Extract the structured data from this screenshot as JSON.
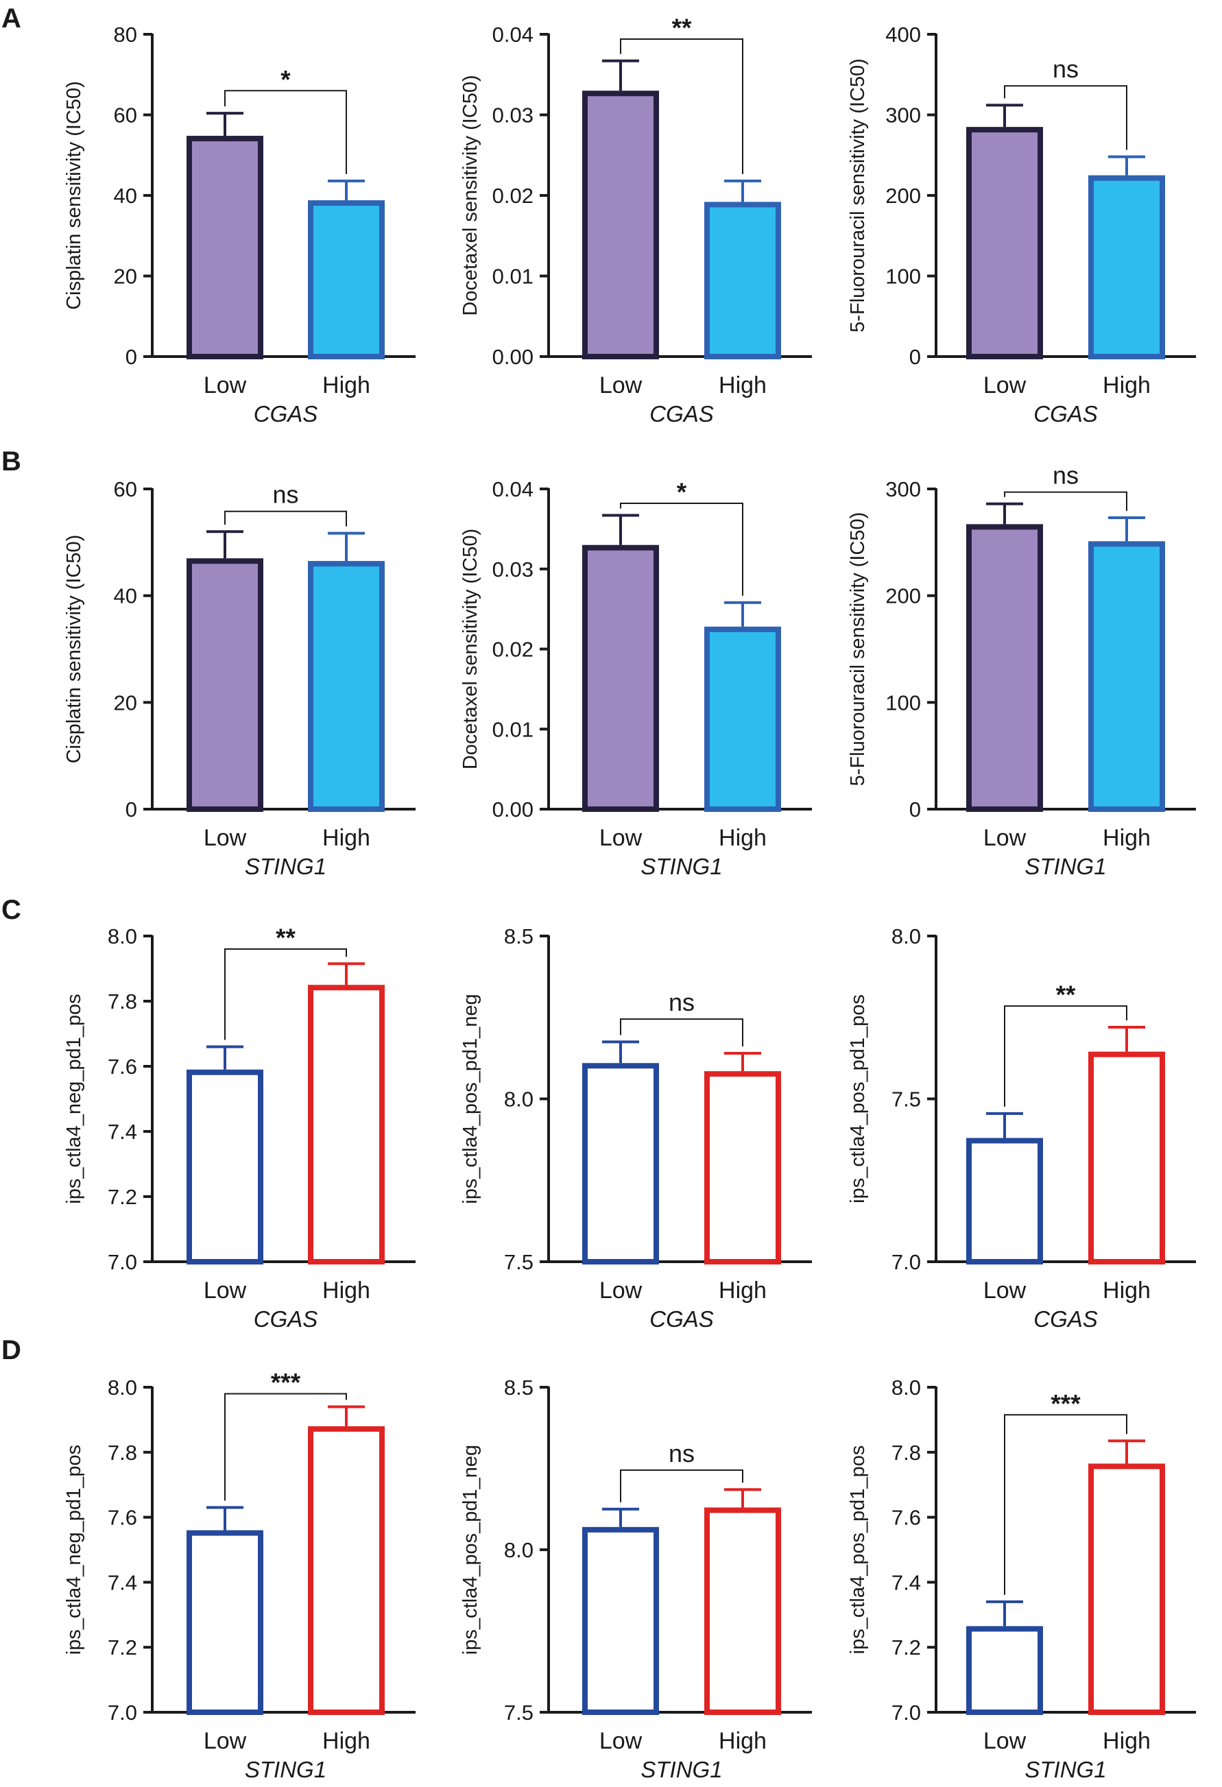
{
  "colors": {
    "low_fill": "#9e88c0",
    "low_stroke": "#26203f",
    "high_fill": "#2ebcee",
    "high_stroke": "#2e62b3",
    "open_low": "#24489c",
    "open_high": "#e02424",
    "axis": "#1a1a1a"
  },
  "chart_data": [
    {
      "panel": "A",
      "type": "bar",
      "style": "filled",
      "gene": "CGAS",
      "title": "",
      "xlabel": "CGAS",
      "ylabel": "Cisplatin sensitivity (IC50)",
      "categories": [
        "Low",
        "High"
      ],
      "values": [
        54.8,
        38.8
      ],
      "errors": [
        5.6,
        4.8
      ],
      "ylim": [
        0,
        80
      ],
      "yticks": [
        "0",
        "20",
        "40",
        "60",
        "80"
      ],
      "tick_values": [
        0,
        20,
        40,
        60,
        80
      ],
      "significance": "*",
      "bracket_low": 66,
      "bracket_high": 66
    },
    {
      "panel": "A",
      "type": "bar",
      "style": "filled",
      "gene": "CGAS",
      "title": "",
      "xlabel": "CGAS",
      "ylabel": "Docetaxel sensitivity (IC50)",
      "categories": [
        "Low",
        "High"
      ],
      "values": [
        0.033,
        0.0192
      ],
      "errors": [
        0.0037,
        0.0026
      ],
      "ylim": [
        0,
        0.04
      ],
      "yticks": [
        "0.00",
        "0.01",
        "0.02",
        "0.03",
        "0.04"
      ],
      "tick_values": [
        0,
        0.01,
        0.02,
        0.03,
        0.04
      ],
      "significance": "**",
      "bracket_low": 0.0394,
      "bracket_high": 0.0394
    },
    {
      "panel": "A",
      "type": "bar",
      "style": "filled",
      "gene": "CGAS",
      "title": "",
      "xlabel": "CGAS",
      "ylabel": "5-Fluorouracil sensitivity (IC50)",
      "categories": [
        "Low",
        "High"
      ],
      "values": [
        285,
        225
      ],
      "errors": [
        27,
        23
      ],
      "ylim": [
        0,
        400
      ],
      "yticks": [
        "0",
        "100",
        "200",
        "300",
        "400"
      ],
      "tick_values": [
        0,
        100,
        200,
        300,
        400
      ],
      "significance": "ns",
      "bracket_low": 336,
      "bracket_high": 336
    },
    {
      "panel": "B",
      "type": "bar",
      "style": "filled",
      "gene": "STING1",
      "title": "",
      "xlabel": "STING1",
      "ylabel": "Cisplatin sensitivity (IC50)",
      "categories": [
        "Low",
        "High"
      ],
      "values": [
        47,
        46.5
      ],
      "errors": [
        5,
        5.2
      ],
      "ylim": [
        0,
        60
      ],
      "yticks": [
        "0",
        "20",
        "40",
        "60"
      ],
      "tick_values": [
        0,
        20,
        40,
        60
      ],
      "significance": "ns",
      "bracket_low": 55.8,
      "bracket_high": 55.8
    },
    {
      "panel": "B",
      "type": "bar",
      "style": "filled",
      "gene": "STING1",
      "title": "",
      "xlabel": "STING1",
      "ylabel": "Docetaxel sensitivity (IC50)",
      "categories": [
        "Low",
        "High"
      ],
      "values": [
        0.033,
        0.0228
      ],
      "errors": [
        0.0037,
        0.003
      ],
      "ylim": [
        0,
        0.04
      ],
      "yticks": [
        "0.00",
        "0.01",
        "0.02",
        "0.03",
        "0.04"
      ],
      "tick_values": [
        0,
        0.01,
        0.02,
        0.03,
        0.04
      ],
      "significance": "*",
      "bracket_low": 0.0382,
      "bracket_high": 0.0382
    },
    {
      "panel": "B",
      "type": "bar",
      "style": "filled",
      "gene": "STING1",
      "title": "",
      "xlabel": "STING1",
      "ylabel": "5-Fluorouracil sensitivity (IC50)",
      "categories": [
        "Low",
        "High"
      ],
      "values": [
        267,
        251
      ],
      "errors": [
        19,
        22
      ],
      "ylim": [
        0,
        300
      ],
      "yticks": [
        "0",
        "100",
        "200",
        "300"
      ],
      "tick_values": [
        0,
        100,
        200,
        300
      ],
      "significance": "ns",
      "bracket_low": 297,
      "bracket_high": 297
    },
    {
      "panel": "C",
      "type": "bar",
      "style": "open",
      "gene": "CGAS",
      "title": "",
      "xlabel": "CGAS",
      "ylabel": "ips_ctla4_neg_pd1_pos",
      "categories": [
        "Low",
        "High"
      ],
      "values": [
        7.59,
        7.85
      ],
      "errors": [
        0.07,
        0.065
      ],
      "ylim": [
        7.0,
        8.0
      ],
      "yticks": [
        "7.0",
        "7.2",
        "7.4",
        "7.6",
        "7.8",
        "8.0"
      ],
      "tick_values": [
        7.0,
        7.2,
        7.4,
        7.6,
        7.8,
        8.0
      ],
      "significance": "**",
      "bracket_low": 7.77,
      "bracket_high": 7.96
    },
    {
      "panel": "C",
      "type": "bar",
      "style": "open",
      "gene": "CGAS",
      "title": "",
      "xlabel": "CGAS",
      "ylabel": "ips_ctla4_pos_pd1_neg",
      "categories": [
        "Low",
        "High"
      ],
      "values": [
        8.11,
        8.085
      ],
      "errors": [
        0.065,
        0.055
      ],
      "ylim": [
        7.5,
        8.5
      ],
      "yticks": [
        "7.5",
        "8.0",
        "8.5"
      ],
      "tick_values": [
        7.5,
        8.0,
        8.5
      ],
      "significance": "ns",
      "bracket_low": 8.245,
      "bracket_high": 8.195
    },
    {
      "panel": "C",
      "type": "bar",
      "style": "open",
      "gene": "CGAS",
      "title": "",
      "xlabel": "CGAS",
      "ylabel": "ips_ctla4_pos_pd1_pos",
      "categories": [
        "Low",
        "High"
      ],
      "values": [
        7.38,
        7.645
      ],
      "errors": [
        0.075,
        0.075
      ],
      "ylim": [
        7.0,
        8.0
      ],
      "yticks": [
        "7.0",
        "7.5",
        "8.0"
      ],
      "tick_values": [
        7.0,
        7.5,
        8.0
      ],
      "significance": "**",
      "bracket_low": 7.535,
      "bracket_high": 7.785
    },
    {
      "panel": "D",
      "type": "bar",
      "style": "open",
      "gene": "STING1",
      "title": "",
      "xlabel": "STING1",
      "ylabel": "ips_ctla4_neg_pd1_pos",
      "categories": [
        "Low",
        "High"
      ],
      "values": [
        7.56,
        7.88
      ],
      "errors": [
        0.07,
        0.06
      ],
      "ylim": [
        7.0,
        8.0
      ],
      "yticks": [
        "7.0",
        "7.2",
        "7.4",
        "7.6",
        "7.8",
        "8.0"
      ],
      "tick_values": [
        7.0,
        7.2,
        7.4,
        7.6,
        7.8,
        8.0
      ],
      "significance": "***",
      "bracket_low": 7.7,
      "bracket_high": 7.98
    },
    {
      "panel": "D",
      "type": "bar",
      "style": "open",
      "gene": "STING1",
      "title": "",
      "xlabel": "STING1",
      "ylabel": "ips_ctla4_pos_pd1_neg",
      "categories": [
        "Low",
        "High"
      ],
      "values": [
        8.07,
        8.13
      ],
      "errors": [
        0.055,
        0.055
      ],
      "ylim": [
        7.5,
        8.5
      ],
      "yticks": [
        "7.5",
        "8.0",
        "8.5"
      ],
      "tick_values": [
        7.5,
        8.0,
        8.5
      ],
      "significance": "ns",
      "bracket_low": 8.185,
      "bracket_high": 8.245
    },
    {
      "panel": "D",
      "type": "bar",
      "style": "open",
      "gene": "STING1",
      "title": "",
      "xlabel": "STING1",
      "ylabel": "ips_ctla4_pos_pd1_pos",
      "categories": [
        "Low",
        "High"
      ],
      "values": [
        7.265,
        7.765
      ],
      "errors": [
        0.075,
        0.07
      ],
      "ylim": [
        7.0,
        8.0
      ],
      "yticks": [
        "7.0",
        "7.2",
        "7.4",
        "7.6",
        "7.8",
        "8.0"
      ],
      "tick_values": [
        7.0,
        7.2,
        7.4,
        7.6,
        7.8,
        8.0
      ],
      "significance": "***",
      "bracket_low": 7.4,
      "bracket_high": 7.915
    }
  ],
  "panel_labels": [
    "A",
    "B",
    "C",
    "D"
  ]
}
